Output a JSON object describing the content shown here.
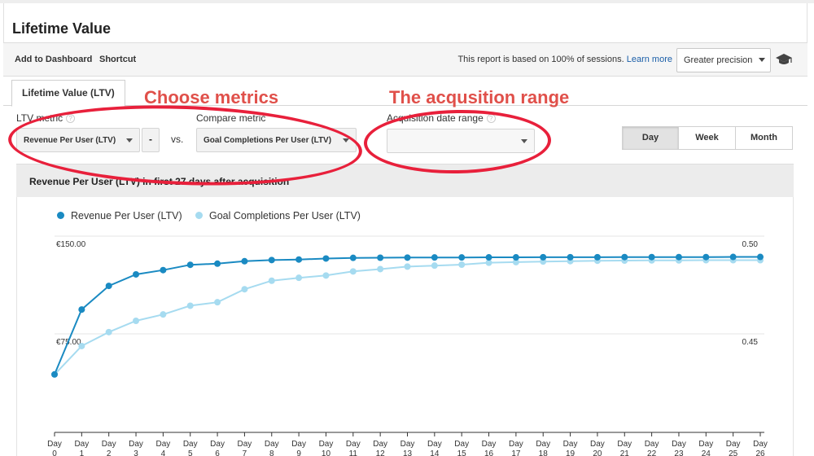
{
  "page": {
    "title": "Lifetime Value"
  },
  "toolbar": {
    "add_to_dashboard": "Add to Dashboard",
    "shortcut": "Shortcut",
    "report_note": "This report is based on 100% of sessions.",
    "learn_more": "Learn more",
    "precision": "Greater precision",
    "cap_icon": "graduation-cap-icon"
  },
  "tabs": [
    {
      "label": "Lifetime Value (LTV)",
      "active": true
    }
  ],
  "controls": {
    "ltv_metric_label": "LTV metric",
    "ltv_metric_value": "Revenue Per User (LTV)",
    "minus_label": "-",
    "vs_label": "vs.",
    "compare_metric_label": "Compare metric",
    "compare_metric_value": "Goal Completions Per User (LTV)",
    "acquisition_range_label": "Acquisition date range",
    "acquisition_range_value": "",
    "help_icon": "?",
    "granularity": [
      {
        "label": "Day",
        "active": true
      },
      {
        "label": "Week",
        "active": false
      },
      {
        "label": "Month",
        "active": false
      }
    ]
  },
  "annotations": {
    "choose_metrics": "Choose metrics",
    "acquisition_range": "The acqusition range",
    "highlight_color": "#e8203b",
    "text_color": "#e0504a"
  },
  "chart_data": {
    "type": "line",
    "title": "Revenue Per User (LTV) in first 27 days after acquisition",
    "x": [
      "0",
      "1",
      "2",
      "3",
      "4",
      "5",
      "6",
      "7",
      "8",
      "9",
      "10",
      "11",
      "12",
      "13",
      "14",
      "15",
      "16",
      "17",
      "18",
      "19",
      "20",
      "21",
      "22",
      "23",
      "24",
      "25",
      "26"
    ],
    "x_tick_prefix": "Day",
    "y_left": {
      "min": 0,
      "max": 150,
      "ticks": [
        "€150.00",
        "€75.00"
      ]
    },
    "y_right": {
      "min": 0.4,
      "max": 0.5,
      "ticks": [
        "0.50",
        "0.45"
      ]
    },
    "grid": true,
    "legend_position": "top-left",
    "series": [
      {
        "name": "Revenue Per User (LTV)",
        "axis": "left",
        "color": "#1a8ac2",
        "values": [
          49.3,
          99.5,
          117.8,
          126.7,
          130.0,
          134.1,
          135.0,
          136.9,
          137.8,
          138.2,
          139.0,
          139.5,
          139.6,
          139.7,
          139.8,
          139.8,
          139.9,
          139.9,
          140.0,
          140.0,
          140.0,
          140.1,
          140.1,
          140.1,
          140.1,
          140.2,
          140.2
        ]
      },
      {
        "name": "Goal Completions Per User (LTV)",
        "axis": "right",
        "color": "#a6dbf0",
        "values": [
          0.4328,
          0.4475,
          0.4547,
          0.4605,
          0.4638,
          0.4683,
          0.4701,
          0.4768,
          0.4812,
          0.4827,
          0.4839,
          0.486,
          0.4872,
          0.4885,
          0.489,
          0.4895,
          0.4905,
          0.4908,
          0.4911,
          0.4913,
          0.4915,
          0.4916,
          0.4917,
          0.4917,
          0.4918,
          0.4918,
          0.4918
        ]
      }
    ]
  }
}
